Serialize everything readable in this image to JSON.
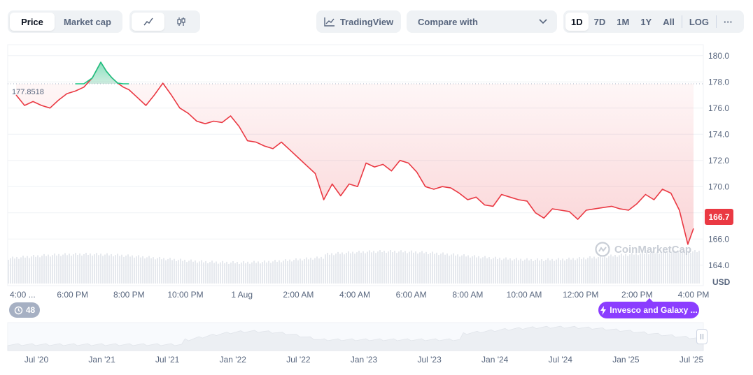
{
  "toolbar": {
    "metric_tabs": [
      {
        "label": "Price",
        "active": true
      },
      {
        "label": "Market cap",
        "active": false
      }
    ],
    "chart_type_icons": [
      {
        "icon": "line-chart-icon",
        "active": true
      },
      {
        "icon": "candlestick-icon",
        "active": false
      }
    ],
    "tradingview_label": "TradingView",
    "compare_label": "Compare with",
    "ranges": [
      "1D",
      "7D",
      "1M",
      "1Y",
      "All"
    ],
    "active_range": "1D",
    "log_label": "LOG",
    "more_label": "···"
  },
  "chart_data": {
    "type": "line",
    "reference_price": 177.8518,
    "reference_label": "177.8518",
    "current_price_label": "166.7",
    "currency_label": "USD",
    "ylim": [
      162.6,
      181.0
    ],
    "y_ticks": [
      "180.0",
      "178.0",
      "176.0",
      "174.0",
      "172.0",
      "170.0",
      "168.0",
      "166.0",
      "164.0"
    ],
    "y_tick_values": [
      180,
      178,
      176,
      174,
      172,
      170,
      168,
      166,
      164
    ],
    "x_ticks": [
      "4:00 ...",
      "6:00 PM",
      "8:00 PM",
      "10:00 PM",
      "1 Aug",
      "2:00 AM",
      "4:00 AM",
      "6:00 AM",
      "8:00 AM",
      "10:00 AM",
      "12:00 PM",
      "2:00 PM",
      "4:00 PM"
    ],
    "x_tick_hours": [
      0,
      2,
      4,
      6,
      8,
      10,
      12,
      14,
      16,
      18,
      20,
      22,
      24
    ],
    "colors": {
      "down": "#ea3943",
      "up": "#16c784",
      "grid": "#eff2f5",
      "volume": "#e6e9ee"
    },
    "series": [
      {
        "x": [
          0,
          0.3,
          0.6,
          0.9,
          1.2,
          1.5,
          1.8,
          2.1,
          2.4,
          2.7,
          3.0,
          3.2,
          3.4,
          3.6,
          3.8,
          4.0,
          4.3,
          4.6,
          4.9,
          5.2,
          5.5,
          5.8,
          6.1,
          6.4,
          6.7,
          7.0,
          7.3,
          7.6,
          7.9,
          8.2,
          8.5,
          8.8,
          9.1,
          9.4,
          9.7,
          10.0,
          10.3,
          10.6,
          10.9,
          11.2,
          11.5,
          11.8,
          12.1,
          12.4,
          12.7,
          13.0,
          13.3,
          13.6,
          13.9,
          14.2,
          14.5,
          14.8,
          15.1,
          15.4,
          15.7,
          16.0,
          16.3,
          16.6,
          16.9,
          17.2,
          17.5,
          17.8,
          18.1,
          18.4,
          18.7,
          19.0,
          19.3,
          19.6,
          19.9,
          20.2,
          20.5,
          20.8,
          21.1,
          21.4,
          21.7,
          22.0,
          22.3,
          22.6,
          22.9,
          23.2,
          23.5,
          23.8,
          24.0
        ],
        "y": [
          177.0,
          176.2,
          176.5,
          176.2,
          176.0,
          176.6,
          177.1,
          177.3,
          177.6,
          178.3,
          179.5,
          178.8,
          178.3,
          177.9,
          177.6,
          177.4,
          176.8,
          176.2,
          177.0,
          177.9,
          177.0,
          176.0,
          175.6,
          175.0,
          174.8,
          175.0,
          174.9,
          175.4,
          174.6,
          173.5,
          173.4,
          173.1,
          172.9,
          173.4,
          172.8,
          172.2,
          171.6,
          171.0,
          169.0,
          170.2,
          169.3,
          170.2,
          170.0,
          171.8,
          171.5,
          171.7,
          171.2,
          172.0,
          171.8,
          171.1,
          170.0,
          169.8,
          170.0,
          169.9,
          169.5,
          169.0,
          169.2,
          168.6,
          168.5,
          169.4,
          169.2,
          169.0,
          168.9,
          168.0,
          167.6,
          168.3,
          168.2,
          168.1,
          167.5,
          168.2,
          168.3,
          168.4,
          168.5,
          168.3,
          168.2,
          168.7,
          169.4,
          169.0,
          169.8,
          169.5,
          168.2,
          165.6,
          166.8
        ]
      }
    ],
    "volume_profile_note": "",
    "overview_x_ticks": [
      "Jul '20",
      "Jan '21",
      "Jul '21",
      "Jan '22",
      "Jul '22",
      "Jan '23",
      "Jul '23",
      "Jan '24",
      "Jul '24",
      "Jan '25",
      "Jul '25"
    ]
  },
  "badges": {
    "event_count": "48",
    "news_label": "Invesco and Galaxy ..."
  },
  "watermark": "CoinMarketCap"
}
